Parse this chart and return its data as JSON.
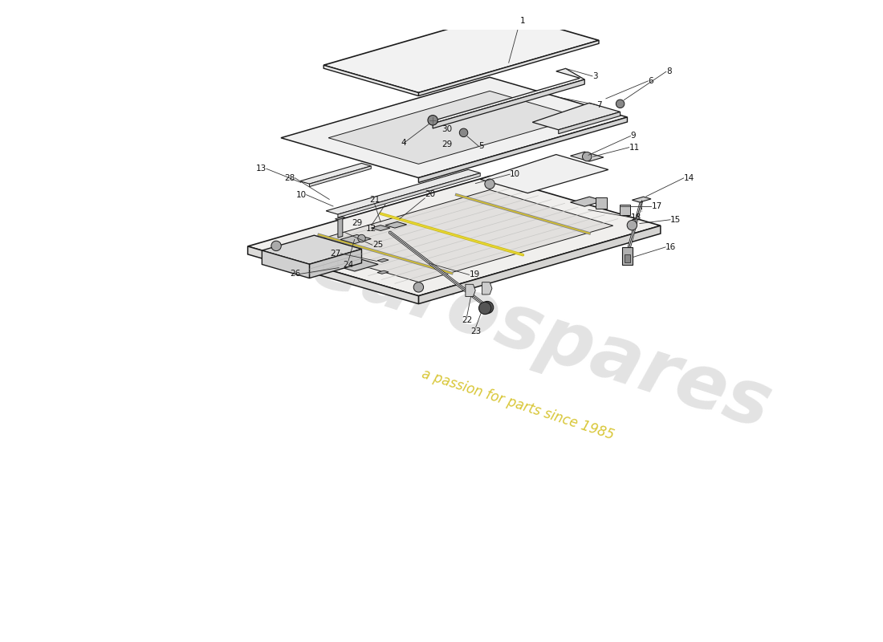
{
  "bg_color": "#ffffff",
  "line_color": "#1a1a1a",
  "label_color": "#111111",
  "watermark_text1": "eurospares",
  "watermark_text2": "a passion for parts since 1985",
  "watermark_color1": "#c8c8c8",
  "watermark_color2": "#d4c020",
  "fig_width": 11.0,
  "fig_height": 8.0,
  "iso_sx": 0.5,
  "iso_sy": 0.28,
  "label_fontsize": 7.5
}
